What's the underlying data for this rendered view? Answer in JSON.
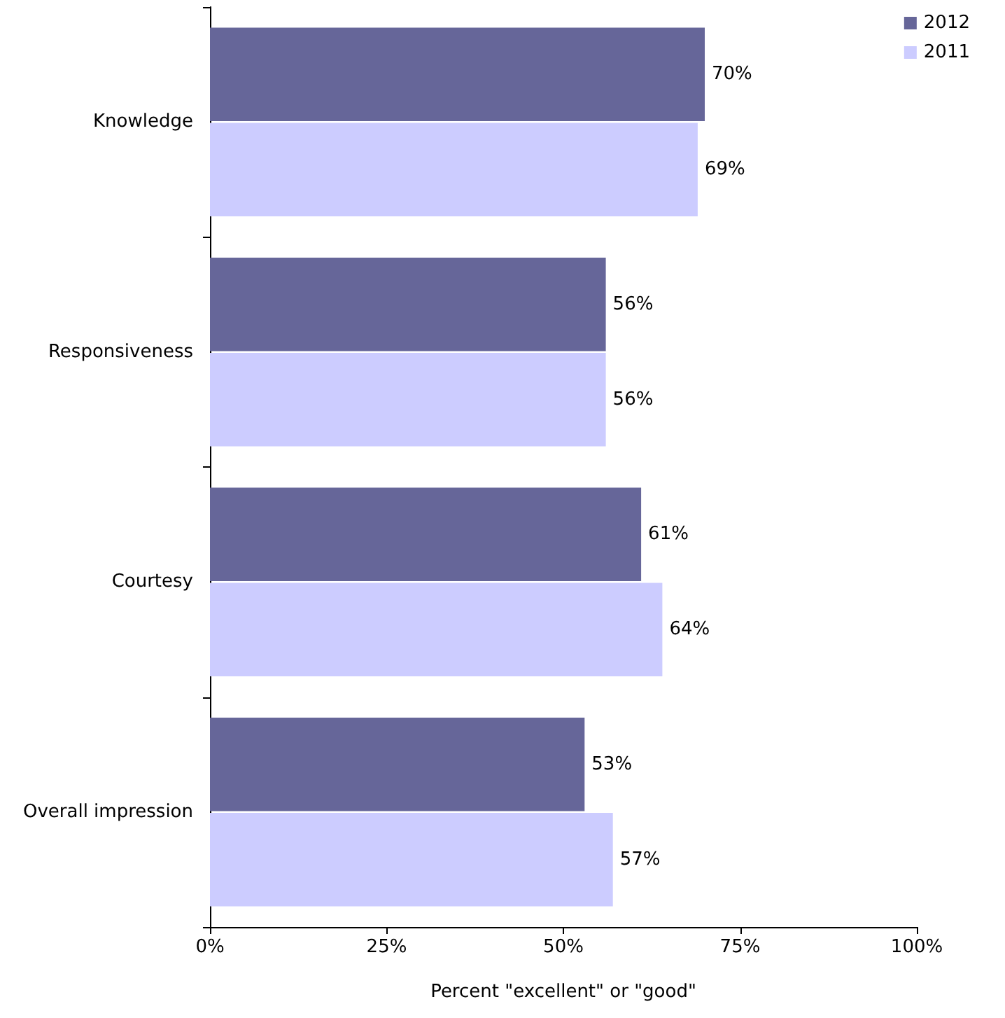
{
  "chart_data": {
    "type": "bar",
    "orientation": "horizontal",
    "xlabel": "Percent \"excellent\" or \"good\"",
    "categories": [
      "Knowledge",
      "Responsiveness",
      "Courtesy",
      "Overall impression"
    ],
    "series": [
      {
        "name": "2012",
        "color": "#666699",
        "values": [
          70,
          56,
          61,
          53
        ],
        "value_labels": [
          "70%",
          "56%",
          "61%",
          "53%"
        ]
      },
      {
        "name": "2011",
        "color": "#ccccff",
        "values": [
          69,
          56,
          64,
          57
        ],
        "value_labels": [
          "69%",
          "56%",
          "64%",
          "57%"
        ]
      }
    ],
    "xlim": [
      0,
      100
    ],
    "xticks": [
      {
        "value": 0,
        "label": "0%"
      },
      {
        "value": 25,
        "label": "25%"
      },
      {
        "value": 50,
        "label": "50%"
      },
      {
        "value": 75,
        "label": "75%"
      },
      {
        "value": 100,
        "label": "100%"
      }
    ],
    "grid": false,
    "legend": "top right"
  }
}
